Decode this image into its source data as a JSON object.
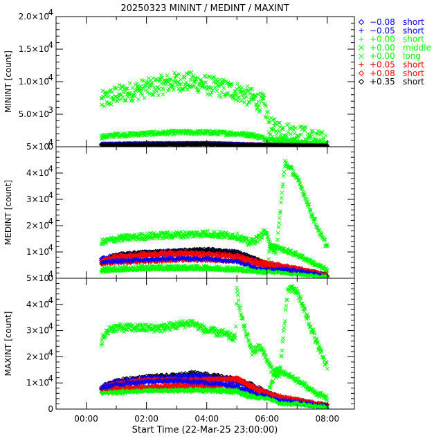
{
  "chart_data": {
    "type": "scatter",
    "title": "20250323 MININT / MEDINT / MAXINT",
    "xlabel": "Start Time (22-Mar-25 23:00:00)",
    "x_unit": "hours since 00:00",
    "xlim": [
      -1.0,
      8.9
    ],
    "x_ticks": [
      {
        "value": 0,
        "label": "00:00"
      },
      {
        "value": 2,
        "label": "02:00"
      },
      {
        "value": 4,
        "label": "04:00"
      },
      {
        "value": 6,
        "label": "06:00"
      },
      {
        "value": 8,
        "label": "08:00"
      }
    ],
    "legend_position": "right",
    "legend": [
      {
        "symbol": "diamond",
        "offset": "−0.08",
        "range": "short",
        "color": "#0000ff"
      },
      {
        "symbol": "plus",
        "offset": "−0.05",
        "range": "short",
        "color": "#0000ff"
      },
      {
        "symbol": "plus",
        "offset": "+0.00",
        "range": "short",
        "color": "#00ff00"
      },
      {
        "symbol": "cross",
        "offset": "+0.00",
        "range": "middle",
        "color": "#00ff00"
      },
      {
        "symbol": "cross",
        "offset": "+0.00",
        "range": "long",
        "color": "#00ff00"
      },
      {
        "symbol": "plus",
        "offset": "+0.05",
        "range": "short",
        "color": "#ff0000"
      },
      {
        "symbol": "diamond",
        "offset": "+0.08",
        "range": "short",
        "color": "#ff0000"
      },
      {
        "symbol": "diamond",
        "offset": "+0.35",
        "range": "short",
        "color": "#000000"
      }
    ],
    "panels": [
      {
        "ylabel": "MININT [count]",
        "ylim": [
          0,
          20000
        ],
        "y_ticks": [
          {
            "value": 0,
            "label": "0"
          },
          {
            "value": 5000,
            "label": "5.0×10",
            "exp": "3"
          },
          {
            "value": 10000,
            "label": "1.0×10",
            "exp": "4"
          },
          {
            "value": 15000,
            "label": "1.5×10",
            "exp": "4"
          },
          {
            "value": 20000,
            "label": "2.0×10",
            "exp": "4"
          }
        ],
        "series": [
          {
            "legend_index": 4,
            "x": [
              0.5,
              1.0,
              1.5,
              2.0,
              2.5,
              3.0,
              3.5,
              4.0,
              4.5,
              5.0,
              5.5,
              5.9,
              6.1,
              6.5,
              7.0,
              7.5,
              8.0
            ],
            "y": [
              7000,
              8000,
              8500,
              9000,
              9500,
              10000,
              10000,
              9500,
              9000,
              8500,
              7500,
              6500,
              3000,
              2500,
              2000,
              1300,
              600
            ],
            "spread": 1500
          },
          {
            "legend_index": 3,
            "x": [
              0.5,
              1.0,
              2.0,
              3.0,
              4.0,
              5.0,
              5.5,
              6.0,
              6.5,
              7.0,
              7.5,
              8.0
            ],
            "y": [
              1500,
              1800,
              2000,
              2200,
              2200,
              2000,
              1800,
              1200,
              800,
              600,
              400,
              300
            ],
            "spread": 300
          },
          {
            "legend_index": 2,
            "x": [
              0.5,
              2.0,
              4.0,
              6.0,
              8.0
            ],
            "y": [
              350,
              450,
              500,
              300,
              150
            ],
            "spread": 80
          },
          {
            "legend_index": 5,
            "x": [
              0.5,
              2.0,
              4.0,
              6.0,
              8.0
            ],
            "y": [
              400,
              500,
              550,
              300,
              150
            ],
            "spread": 100
          },
          {
            "legend_index": 6,
            "x": [
              0.5,
              2.0,
              4.0,
              6.0,
              8.0
            ],
            "y": [
              400,
              480,
              500,
              280,
              140
            ],
            "spread": 80
          },
          {
            "legend_index": 1,
            "x": [
              0.5,
              2.0,
              4.0,
              6.0,
              8.0
            ],
            "y": [
              380,
              470,
              490,
              250,
              120
            ],
            "spread": 80
          },
          {
            "legend_index": 0,
            "x": [
              0.5,
              2.0,
              4.0,
              6.0,
              8.0
            ],
            "y": [
              390,
              470,
              500,
              260,
              130
            ],
            "spread": 80
          },
          {
            "legend_index": 7,
            "x": [
              0.5,
              2.0,
              4.0,
              6.0,
              8.0
            ],
            "y": [
              300,
              350,
              400,
              200,
              100
            ],
            "spread": 60
          }
        ]
      },
      {
        "ylabel": "MEDINT [count]",
        "ylim": [
          0,
          50000
        ],
        "y_ticks": [
          {
            "value": 0,
            "label": "0"
          },
          {
            "value": 10000,
            "label": "1×10",
            "exp": "4"
          },
          {
            "value": 20000,
            "label": "2×10",
            "exp": "4"
          },
          {
            "value": 30000,
            "label": "3×10",
            "exp": "4"
          },
          {
            "value": 40000,
            "label": "4×10",
            "exp": "4"
          },
          {
            "value": 50000,
            "label": "5×10",
            "exp": "4"
          }
        ],
        "series": [
          {
            "legend_index": 4,
            "x": [
              0.5,
              1.0,
              2.0,
              3.0,
              4.0,
              5.0,
              5.4,
              5.7,
              5.95,
              6.05,
              6.3,
              6.6,
              6.9,
              7.2,
              7.5,
              7.8,
              8.0
            ],
            "y": [
              13500,
              15000,
              16000,
              16500,
              17000,
              16000,
              13500,
              15000,
              18000,
              14000,
              9000,
              44000,
              40000,
              33000,
              24000,
              16000,
              12000
            ],
            "spread": 1200
          },
          {
            "legend_index": 3,
            "x": [
              0.5,
              1.0,
              2.0,
              3.0,
              4.0,
              5.0,
              6.0,
              6.1,
              6.5,
              7.0,
              7.5,
              8.0
            ],
            "y": [
              3000,
              3500,
              4000,
              4000,
              4000,
              3500,
              2500,
              13000,
              11000,
              9000,
              6000,
              3000
            ],
            "spread": 800
          },
          {
            "legend_index": 0,
            "x": [
              0.5,
              1.0,
              2.0,
              3.0,
              4.0,
              5.0,
              5.5,
              6.0,
              6.5,
              7.0,
              7.5,
              8.0
            ],
            "y": [
              7000,
              8500,
              9500,
              10000,
              10500,
              9500,
              7500,
              5000,
              4000,
              3000,
              2000,
              800
            ],
            "spread": 800
          },
          {
            "legend_index": 7,
            "x": [
              0.5,
              1.0,
              2.0,
              3.0,
              4.0,
              5.0,
              5.5,
              6.0,
              6.5,
              7.0,
              7.5,
              8.0
            ],
            "y": [
              6000,
              8500,
              9500,
              10000,
              10500,
              9500,
              7500,
              5000,
              4000,
              3000,
              2000,
              800
            ],
            "spread": 800
          },
          {
            "legend_index": 6,
            "x": [
              0.5,
              1.0,
              2.0,
              3.0,
              4.0,
              5.0,
              5.5,
              6.0,
              6.5,
              7.0,
              7.5,
              8.0
            ],
            "y": [
              6500,
              8000,
              9000,
              9500,
              9000,
              8500,
              6500,
              5500,
              4500,
              3500,
              2200,
              900
            ],
            "spread": 700
          },
          {
            "legend_index": 5,
            "x": [
              0.5,
              1.0,
              2.0,
              3.0,
              4.0,
              5.0,
              5.5,
              6.0,
              6.5,
              7.0,
              7.5,
              8.0
            ],
            "y": [
              5500,
              6000,
              6500,
              7000,
              7000,
              6500,
              5500,
              5000,
              4500,
              3500,
              2300,
              900
            ],
            "spread": 600
          },
          {
            "legend_index": 1,
            "x": [
              0.5,
              1.0,
              2.0,
              3.0,
              4.0,
              5.0,
              5.5,
              6.0,
              6.5,
              7.0,
              7.5,
              8.0
            ],
            "y": [
              6000,
              6500,
              7000,
              7500,
              7500,
              6500,
              4500,
              3000,
              3500,
              2800,
              1800,
              600
            ],
            "spread": 600
          },
          {
            "legend_index": 2,
            "x": [
              0.5,
              2.0,
              4.0,
              5.0,
              6.0,
              6.5,
              7.0,
              8.0
            ],
            "y": [
              3000,
              3500,
              3500,
              3000,
              2500,
              2000,
              1500,
              500
            ],
            "spread": 400
          }
        ]
      },
      {
        "ylabel": "MAXINT [count]",
        "ylim": [
          0,
          50000
        ],
        "y_ticks": [
          {
            "value": 0,
            "label": "0"
          },
          {
            "value": 10000,
            "label": "1×10",
            "exp": "4"
          },
          {
            "value": 20000,
            "label": "2×10",
            "exp": "4"
          },
          {
            "value": 30000,
            "label": "3×10",
            "exp": "4"
          },
          {
            "value": 40000,
            "label": "4×10",
            "exp": "4"
          },
          {
            "value": 50000,
            "label": "5×10",
            "exp": "4"
          }
        ],
        "series": [
          {
            "legend_index": 4,
            "x": [
              0.5,
              0.8,
              1.5,
              2.5,
              3.5,
              4.0,
              4.5,
              4.95,
              5.0,
              5.2,
              5.5,
              5.8,
              6.1,
              6.4,
              6.7,
              7.0,
              7.4,
              7.8,
              8.0
            ],
            "y": [
              26000,
              31000,
              31000,
              31000,
              33000,
              30000,
              29000,
              27000,
              45000,
              33000,
              22000,
              24000,
              16000,
              12000,
              46000,
              45000,
              33000,
              21000,
              16000
            ],
            "spread": 1500
          },
          {
            "legend_index": 3,
            "x": [
              0.5,
              2.0,
              4.0,
              5.0,
              5.5,
              6.0,
              6.3,
              6.5,
              7.0,
              7.5,
              8.0
            ],
            "y": [
              7000,
              7500,
              8000,
              7500,
              5500,
              4500,
              15000,
              14000,
              11000,
              7000,
              4000
            ],
            "spread": 900
          },
          {
            "legend_index": 7,
            "x": [
              0.5,
              1.0,
              2.0,
              3.0,
              3.5,
              4.0,
              5.0,
              5.5,
              6.0,
              6.5,
              7.0,
              8.0
            ],
            "y": [
              8000,
              10500,
              12000,
              12500,
              13500,
              13000,
              11000,
              9000,
              6000,
              4000,
              3000,
              1000
            ],
            "spread": 800
          },
          {
            "legend_index": 0,
            "x": [
              0.5,
              1.0,
              2.0,
              3.0,
              3.5,
              4.0,
              5.0,
              5.5,
              6.0,
              6.5,
              7.0,
              8.0
            ],
            "y": [
              8500,
              10000,
              11500,
              12000,
              12500,
              12000,
              11000,
              8500,
              6000,
              3500,
              2800,
              900
            ],
            "spread": 800
          },
          {
            "legend_index": 6,
            "x": [
              0.5,
              1.0,
              2.0,
              3.0,
              4.0,
              5.0,
              5.5,
              6.0,
              6.5,
              7.0,
              8.0
            ],
            "y": [
              8000,
              9500,
              11000,
              11000,
              11000,
              11500,
              8500,
              6000,
              4000,
              3200,
              1100
            ],
            "spread": 700
          },
          {
            "legend_index": 5,
            "x": [
              0.5,
              1.0,
              2.0,
              3.0,
              4.0,
              4.9,
              5.0,
              5.5,
              6.0,
              6.5,
              7.0,
              8.0
            ],
            "y": [
              7000,
              8000,
              8500,
              9000,
              9000,
              9000,
              12000,
              8000,
              6000,
              4500,
              3500,
              1200
            ],
            "spread": 700
          },
          {
            "legend_index": 1,
            "x": [
              0.5,
              1.0,
              2.0,
              3.0,
              4.0,
              5.0,
              5.5,
              6.0,
              6.5,
              7.0,
              8.0
            ],
            "y": [
              8000,
              9500,
              10500,
              11000,
              10000,
              9000,
              6500,
              4500,
              3000,
              2500,
              800
            ],
            "spread": 700
          },
          {
            "legend_index": 2,
            "x": [
              0.5,
              2.0,
              4.0,
              5.0,
              5.3,
              6.0,
              6.5,
              7.0,
              8.0
            ],
            "y": [
              6000,
              7000,
              7000,
              6500,
              5000,
              4000,
              2000,
              2000,
              500
            ],
            "spread": 600
          }
        ]
      }
    ]
  }
}
